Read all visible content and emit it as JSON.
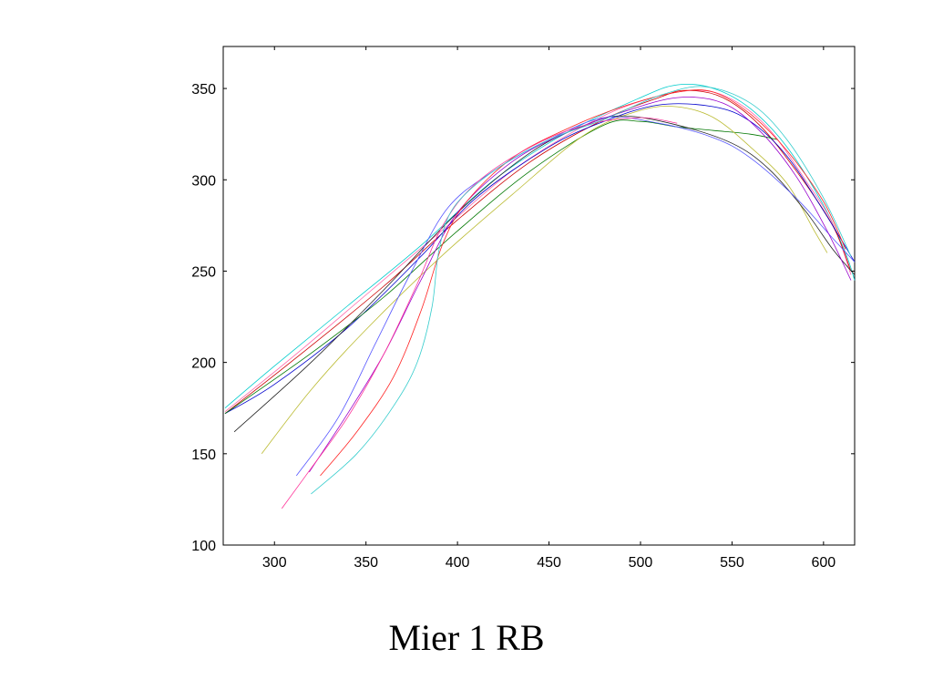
{
  "caption": "Mier 1 RB",
  "chart_data": {
    "type": "line",
    "title": "",
    "xlabel": "",
    "ylabel": "",
    "xlim": [
      272,
      617
    ],
    "ylim": [
      100,
      373
    ],
    "xticks": [
      300,
      350,
      400,
      450,
      500,
      550,
      600
    ],
    "yticks": [
      100,
      150,
      200,
      250,
      300,
      350
    ],
    "grid": false,
    "legend": "none",
    "series": [
      {
        "color": "#00cccc",
        "points": [
          [
            273,
            175
          ],
          [
            300,
            198
          ],
          [
            340,
            231
          ],
          [
            380,
            264
          ],
          [
            420,
            300
          ],
          [
            460,
            326
          ],
          [
            500,
            345
          ],
          [
            520,
            352
          ],
          [
            540,
            350
          ],
          [
            560,
            339
          ],
          [
            580,
            318
          ],
          [
            600,
            286
          ],
          [
            612,
            260
          ],
          [
            617,
            245
          ]
        ]
      },
      {
        "color": "#ff66aa",
        "points": [
          [
            273,
            173
          ],
          [
            310,
            203
          ],
          [
            350,
            237
          ],
          [
            390,
            271
          ],
          [
            430,
            305
          ],
          [
            470,
            330
          ],
          [
            500,
            343
          ],
          [
            530,
            349
          ],
          [
            550,
            344
          ],
          [
            570,
            328
          ],
          [
            590,
            300
          ],
          [
            605,
            276
          ],
          [
            615,
            248
          ]
        ]
      },
      {
        "color": "#cc0000",
        "points": [
          [
            273,
            172
          ],
          [
            310,
            201
          ],
          [
            360,
            242
          ],
          [
            400,
            278
          ],
          [
            440,
            310
          ],
          [
            480,
            333
          ],
          [
            510,
            345
          ],
          [
            525,
            349
          ],
          [
            545,
            345
          ],
          [
            565,
            330
          ],
          [
            585,
            305
          ],
          [
            605,
            275
          ],
          [
            615,
            250
          ]
        ]
      },
      {
        "color": "#0000cc",
        "points": [
          [
            273,
            172
          ],
          [
            300,
            188
          ],
          [
            340,
            219
          ],
          [
            380,
            258
          ],
          [
            410,
            290
          ],
          [
            450,
            318
          ],
          [
            480,
            332
          ],
          [
            510,
            341
          ],
          [
            540,
            340
          ],
          [
            560,
            332
          ],
          [
            580,
            313
          ],
          [
            600,
            283
          ],
          [
            617,
            255
          ]
        ]
      },
      {
        "color": "#007700",
        "points": [
          [
            273,
            172
          ],
          [
            320,
            205
          ],
          [
            360,
            236
          ],
          [
            400,
            272
          ],
          [
            440,
            305
          ],
          [
            480,
            330
          ],
          [
            500,
            332
          ],
          [
            520,
            329
          ],
          [
            540,
            327
          ],
          [
            560,
            325
          ],
          [
            575,
            322
          ]
        ]
      },
      {
        "color": "#bbbb33",
        "points": [
          [
            293,
            150
          ],
          [
            320,
            185
          ],
          [
            350,
            218
          ],
          [
            390,
            257
          ],
          [
            430,
            292
          ],
          [
            470,
            325
          ],
          [
            500,
            338
          ],
          [
            520,
            340
          ],
          [
            540,
            334
          ],
          [
            560,
            318
          ],
          [
            580,
            298
          ],
          [
            595,
            272
          ],
          [
            602,
            260
          ]
        ]
      },
      {
        "color": "#222222",
        "points": [
          [
            278,
            162
          ],
          [
            320,
            200
          ],
          [
            360,
            240
          ],
          [
            400,
            282
          ],
          [
            440,
            315
          ],
          [
            470,
            330
          ],
          [
            490,
            335
          ],
          [
            520,
            330
          ],
          [
            550,
            320
          ],
          [
            570,
            306
          ],
          [
            590,
            283
          ],
          [
            605,
            262
          ],
          [
            617,
            248
          ]
        ]
      },
      {
        "color": "#5555ff",
        "points": [
          [
            312,
            138
          ],
          [
            335,
            170
          ],
          [
            355,
            210
          ],
          [
            375,
            250
          ],
          [
            395,
            285
          ],
          [
            420,
            305
          ],
          [
            450,
            322
          ],
          [
            480,
            334
          ],
          [
            510,
            331
          ],
          [
            540,
            323
          ],
          [
            560,
            312
          ],
          [
            585,
            290
          ],
          [
            605,
            268
          ],
          [
            617,
            255
          ]
        ]
      },
      {
        "color": "#9900cc",
        "points": [
          [
            319,
            140
          ],
          [
            340,
            172
          ],
          [
            360,
            205
          ],
          [
            380,
            245
          ],
          [
            400,
            282
          ],
          [
            430,
            310
          ],
          [
            460,
            326
          ],
          [
            490,
            337
          ],
          [
            520,
            345
          ],
          [
            545,
            342
          ],
          [
            565,
            327
          ],
          [
            585,
            302
          ],
          [
            602,
            272
          ],
          [
            615,
            245
          ]
        ]
      },
      {
        "color": "#ff2222",
        "points": [
          [
            325,
            138
          ],
          [
            345,
            162
          ],
          [
            365,
            192
          ],
          [
            380,
            228
          ],
          [
            392,
            265
          ],
          [
            405,
            288
          ],
          [
            430,
            312
          ],
          [
            460,
            328
          ],
          [
            490,
            340
          ],
          [
            520,
            348
          ],
          [
            540,
            348
          ],
          [
            560,
            336
          ],
          [
            580,
            316
          ],
          [
            600,
            288
          ],
          [
            612,
            262
          ]
        ]
      },
      {
        "color": "#ff3399",
        "points": [
          [
            304,
            120
          ],
          [
            320,
            142
          ],
          [
            340,
            170
          ],
          [
            360,
            205
          ],
          [
            378,
            243
          ],
          [
            392,
            275
          ],
          [
            410,
            298
          ],
          [
            440,
            318
          ],
          [
            470,
            330
          ],
          [
            500,
            334
          ],
          [
            520,
            331
          ]
        ]
      },
      {
        "color": "#33cccc",
        "points": [
          [
            320,
            128
          ],
          [
            345,
            150
          ],
          [
            365,
            176
          ],
          [
            378,
            200
          ],
          [
            386,
            230
          ],
          [
            390,
            262
          ],
          [
            398,
            285
          ],
          [
            420,
            305
          ],
          [
            450,
            322
          ],
          [
            480,
            333
          ],
          [
            510,
            346
          ],
          [
            535,
            351
          ],
          [
            560,
            342
          ],
          [
            580,
            322
          ],
          [
            600,
            290
          ],
          [
            615,
            258
          ]
        ]
      }
    ]
  }
}
